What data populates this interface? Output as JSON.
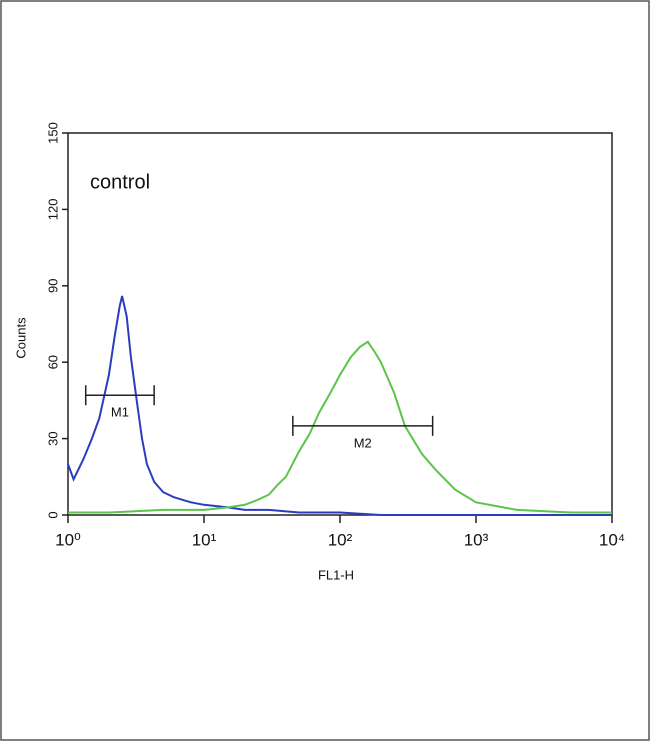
{
  "chart_data": {
    "type": "histogram-overlay",
    "annotation": "control",
    "xlabel": "FL1-H",
    "ylabel": "Counts",
    "xscale": "log",
    "xlim": [
      1,
      10000
    ],
    "ylim": [
      0,
      150
    ],
    "xticks": [
      {
        "value": 1,
        "label": "10⁰"
      },
      {
        "value": 10,
        "label": "10¹"
      },
      {
        "value": 100,
        "label": "10²"
      },
      {
        "value": 1000,
        "label": "10³"
      },
      {
        "value": 10000,
        "label": "10⁴"
      }
    ],
    "yticks": [
      0,
      30,
      60,
      90,
      120,
      150
    ],
    "series": [
      {
        "color": "#2b3cc0",
        "x": [
          1,
          1.1,
          1.3,
          1.5,
          1.7,
          2,
          2.2,
          2.4,
          2.5,
          2.7,
          2.9,
          3.2,
          3.5,
          3.8,
          4.3,
          5,
          6,
          8,
          10,
          15,
          20,
          30,
          50,
          100,
          200,
          1000,
          10000
        ],
        "values": [
          20,
          14,
          22,
          30,
          38,
          55,
          70,
          82,
          86,
          78,
          62,
          45,
          30,
          20,
          13,
          9,
          7,
          5,
          4,
          3,
          2,
          2,
          1,
          1,
          0,
          0,
          0
        ]
      },
      {
        "color": "#5cc449",
        "x": [
          1,
          2,
          5,
          10,
          15,
          20,
          25,
          30,
          35,
          40,
          50,
          60,
          70,
          85,
          100,
          120,
          140,
          160,
          180,
          200,
          250,
          300,
          400,
          500,
          700,
          1000,
          2000,
          5000,
          10000
        ],
        "values": [
          1,
          1,
          2,
          2,
          3,
          4,
          6,
          8,
          12,
          15,
          25,
          32,
          40,
          48,
          55,
          62,
          66,
          68,
          64,
          60,
          48,
          35,
          24,
          18,
          10,
          5,
          2,
          1,
          1
        ]
      }
    ],
    "markers": [
      {
        "label": "M1",
        "range": [
          1.35,
          4.3
        ],
        "level": 47
      },
      {
        "label": "M2",
        "range": [
          45,
          480
        ],
        "level": 35
      }
    ]
  }
}
